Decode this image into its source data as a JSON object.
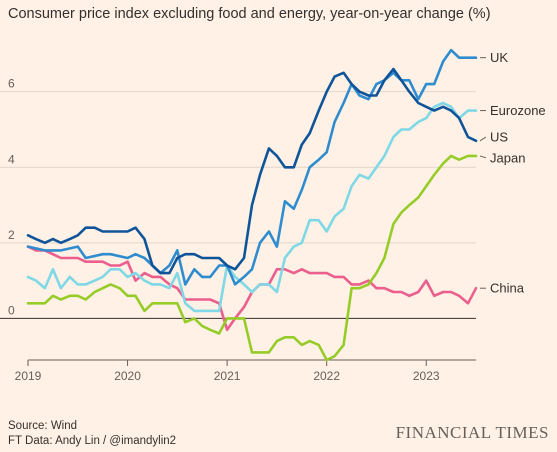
{
  "title": "Consumer price index excluding food and energy, year-on-year change (%)",
  "source_line": "Source: Wind",
  "credit_line": "FT Data: Andy Lin / @imandylin2",
  "brand": "FINANCIAL TIMES",
  "chart_data": {
    "type": "line",
    "title": "Consumer price index excluding food and energy, year-on-year change (%)",
    "xlabel": "",
    "ylabel": "",
    "x_ticks": [
      "2019",
      "2020",
      "2021",
      "2022",
      "2023"
    ],
    "y_ticks": [
      0,
      2,
      4,
      6
    ],
    "xlim": [
      2019.0,
      2023.5
    ],
    "ylim": [
      -1.1,
      7.5
    ],
    "grid": "horizontal",
    "legend": "direct labels at right end of lines",
    "series": [
      {
        "name": "UK",
        "color": "#2e8ccf",
        "label_y": 6.9,
        "points": [
          [
            2019.0,
            1.9
          ],
          [
            2019.17,
            1.8
          ],
          [
            2019.33,
            1.8
          ],
          [
            2019.5,
            1.9
          ],
          [
            2019.58,
            1.6
          ],
          [
            2019.75,
            1.7
          ],
          [
            2019.83,
            1.7
          ],
          [
            2020.0,
            1.6
          ],
          [
            2020.08,
            1.7
          ],
          [
            2020.17,
            1.6
          ],
          [
            2020.25,
            1.4
          ],
          [
            2020.33,
            1.2
          ],
          [
            2020.42,
            1.4
          ],
          [
            2020.5,
            1.8
          ],
          [
            2020.58,
            0.9
          ],
          [
            2020.67,
            1.3
          ],
          [
            2020.75,
            1.1
          ],
          [
            2020.83,
            1.1
          ],
          [
            2020.92,
            1.4
          ],
          [
            2021.0,
            1.4
          ],
          [
            2021.08,
            0.9
          ],
          [
            2021.17,
            1.1
          ],
          [
            2021.25,
            1.3
          ],
          [
            2021.33,
            2.0
          ],
          [
            2021.42,
            2.3
          ],
          [
            2021.5,
            1.9
          ],
          [
            2021.58,
            3.1
          ],
          [
            2021.67,
            2.9
          ],
          [
            2021.75,
            3.4
          ],
          [
            2021.83,
            4.0
          ],
          [
            2021.92,
            4.2
          ],
          [
            2022.0,
            4.4
          ],
          [
            2022.08,
            5.2
          ],
          [
            2022.17,
            5.7
          ],
          [
            2022.25,
            6.2
          ],
          [
            2022.33,
            5.9
          ],
          [
            2022.42,
            5.8
          ],
          [
            2022.5,
            6.2
          ],
          [
            2022.58,
            6.3
          ],
          [
            2022.67,
            6.5
          ],
          [
            2022.75,
            6.3
          ],
          [
            2022.83,
            6.3
          ],
          [
            2022.92,
            5.8
          ],
          [
            2023.0,
            6.2
          ],
          [
            2023.08,
            6.2
          ],
          [
            2023.17,
            6.8
          ],
          [
            2023.25,
            7.1
          ],
          [
            2023.33,
            6.9
          ],
          [
            2023.5,
            6.9
          ]
        ]
      },
      {
        "name": "Eurozone",
        "color": "#7fd8e6",
        "label_y": 5.5,
        "points": [
          [
            2019.0,
            1.1
          ],
          [
            2019.08,
            1.0
          ],
          [
            2019.17,
            0.8
          ],
          [
            2019.25,
            1.3
          ],
          [
            2019.33,
            0.8
          ],
          [
            2019.42,
            1.1
          ],
          [
            2019.5,
            0.9
          ],
          [
            2019.58,
            0.9
          ],
          [
            2019.67,
            1.0
          ],
          [
            2019.75,
            1.1
          ],
          [
            2019.83,
            1.3
          ],
          [
            2019.92,
            1.3
          ],
          [
            2020.0,
            1.1
          ],
          [
            2020.08,
            1.2
          ],
          [
            2020.17,
            1.0
          ],
          [
            2020.25,
            0.9
          ],
          [
            2020.33,
            0.9
          ],
          [
            2020.42,
            0.8
          ],
          [
            2020.5,
            1.2
          ],
          [
            2020.58,
            0.4
          ],
          [
            2020.67,
            0.2
          ],
          [
            2020.75,
            0.2
          ],
          [
            2020.92,
            0.2
          ],
          [
            2021.0,
            1.4
          ],
          [
            2021.08,
            1.1
          ],
          [
            2021.17,
            0.9
          ],
          [
            2021.25,
            0.7
          ],
          [
            2021.33,
            0.9
          ],
          [
            2021.42,
            0.9
          ],
          [
            2021.5,
            0.7
          ],
          [
            2021.58,
            1.6
          ],
          [
            2021.67,
            1.9
          ],
          [
            2021.75,
            2.0
          ],
          [
            2021.83,
            2.6
          ],
          [
            2021.92,
            2.6
          ],
          [
            2022.0,
            2.3
          ],
          [
            2022.08,
            2.7
          ],
          [
            2022.17,
            2.9
          ],
          [
            2022.25,
            3.5
          ],
          [
            2022.33,
            3.8
          ],
          [
            2022.42,
            3.7
          ],
          [
            2022.5,
            4.0
          ],
          [
            2022.58,
            4.3
          ],
          [
            2022.67,
            4.8
          ],
          [
            2022.75,
            5.0
          ],
          [
            2022.83,
            5.0
          ],
          [
            2022.92,
            5.2
          ],
          [
            2023.0,
            5.3
          ],
          [
            2023.08,
            5.6
          ],
          [
            2023.17,
            5.7
          ],
          [
            2023.25,
            5.6
          ],
          [
            2023.33,
            5.3
          ],
          [
            2023.42,
            5.5
          ],
          [
            2023.5,
            5.5
          ]
        ]
      },
      {
        "name": "US",
        "color": "#0f5499",
        "label_y": 4.8,
        "points": [
          [
            2019.0,
            2.2
          ],
          [
            2019.08,
            2.1
          ],
          [
            2019.17,
            2.0
          ],
          [
            2019.25,
            2.1
          ],
          [
            2019.33,
            2.0
          ],
          [
            2019.42,
            2.1
          ],
          [
            2019.5,
            2.2
          ],
          [
            2019.58,
            2.4
          ],
          [
            2019.67,
            2.4
          ],
          [
            2019.75,
            2.3
          ],
          [
            2019.83,
            2.3
          ],
          [
            2019.92,
            2.3
          ],
          [
            2020.0,
            2.3
          ],
          [
            2020.08,
            2.4
          ],
          [
            2020.17,
            2.1
          ],
          [
            2020.25,
            1.4
          ],
          [
            2020.33,
            1.2
          ],
          [
            2020.42,
            1.2
          ],
          [
            2020.5,
            1.6
          ],
          [
            2020.58,
            1.7
          ],
          [
            2020.67,
            1.7
          ],
          [
            2020.75,
            1.6
          ],
          [
            2020.83,
            1.6
          ],
          [
            2020.92,
            1.6
          ],
          [
            2021.0,
            1.4
          ],
          [
            2021.08,
            1.3
          ],
          [
            2021.17,
            1.6
          ],
          [
            2021.25,
            3.0
          ],
          [
            2021.33,
            3.8
          ],
          [
            2021.42,
            4.5
          ],
          [
            2021.5,
            4.3
          ],
          [
            2021.58,
            4.0
          ],
          [
            2021.67,
            4.0
          ],
          [
            2021.75,
            4.6
          ],
          [
            2021.83,
            4.9
          ],
          [
            2021.92,
            5.5
          ],
          [
            2022.0,
            6.0
          ],
          [
            2022.08,
            6.4
          ],
          [
            2022.17,
            6.5
          ],
          [
            2022.25,
            6.2
          ],
          [
            2022.33,
            6.0
          ],
          [
            2022.42,
            5.9
          ],
          [
            2022.5,
            5.9
          ],
          [
            2022.58,
            6.3
          ],
          [
            2022.67,
            6.6
          ],
          [
            2022.75,
            6.3
          ],
          [
            2022.83,
            6.0
          ],
          [
            2022.92,
            5.7
          ],
          [
            2023.0,
            5.6
          ],
          [
            2023.08,
            5.5
          ],
          [
            2023.17,
            5.6
          ],
          [
            2023.25,
            5.5
          ],
          [
            2023.33,
            5.3
          ],
          [
            2023.42,
            4.8
          ],
          [
            2023.5,
            4.7
          ]
        ]
      },
      {
        "name": "Japan",
        "color": "#96cc28",
        "label_y": 4.25,
        "points": [
          [
            2019.0,
            0.4
          ],
          [
            2019.08,
            0.4
          ],
          [
            2019.17,
            0.4
          ],
          [
            2019.25,
            0.6
          ],
          [
            2019.33,
            0.5
          ],
          [
            2019.42,
            0.6
          ],
          [
            2019.5,
            0.6
          ],
          [
            2019.58,
            0.5
          ],
          [
            2019.67,
            0.7
          ],
          [
            2019.75,
            0.8
          ],
          [
            2019.83,
            0.9
          ],
          [
            2019.92,
            0.8
          ],
          [
            2020.0,
            0.6
          ],
          [
            2020.08,
            0.6
          ],
          [
            2020.17,
            0.2
          ],
          [
            2020.25,
            0.4
          ],
          [
            2020.33,
            0.4
          ],
          [
            2020.42,
            0.4
          ],
          [
            2020.5,
            0.4
          ],
          [
            2020.58,
            -0.1
          ],
          [
            2020.67,
            0.0
          ],
          [
            2020.75,
            -0.2
          ],
          [
            2020.83,
            -0.3
          ],
          [
            2020.92,
            -0.4
          ],
          [
            2021.0,
            0.0
          ],
          [
            2021.08,
            0.0
          ],
          [
            2021.17,
            0.0
          ],
          [
            2021.25,
            -0.9
          ],
          [
            2021.33,
            -0.9
          ],
          [
            2021.42,
            -0.9
          ],
          [
            2021.5,
            -0.6
          ],
          [
            2021.58,
            -0.5
          ],
          [
            2021.67,
            -0.5
          ],
          [
            2021.75,
            -0.7
          ],
          [
            2021.83,
            -0.6
          ],
          [
            2021.92,
            -0.7
          ],
          [
            2022.0,
            -1.1
          ],
          [
            2022.08,
            -1.0
          ],
          [
            2022.17,
            -0.7
          ],
          [
            2022.25,
            0.8
          ],
          [
            2022.33,
            0.8
          ],
          [
            2022.42,
            0.9
          ],
          [
            2022.5,
            1.2
          ],
          [
            2022.58,
            1.6
          ],
          [
            2022.67,
            2.5
          ],
          [
            2022.75,
            2.8
          ],
          [
            2022.83,
            3.0
          ],
          [
            2022.92,
            3.2
          ],
          [
            2023.0,
            3.5
          ],
          [
            2023.08,
            3.8
          ],
          [
            2023.17,
            4.1
          ],
          [
            2023.25,
            4.3
          ],
          [
            2023.33,
            4.2
          ],
          [
            2023.42,
            4.3
          ],
          [
            2023.5,
            4.3
          ]
        ]
      },
      {
        "name": "China",
        "color": "#eb5e8d",
        "label_y": 0.8,
        "points": [
          [
            2019.0,
            1.9
          ],
          [
            2019.08,
            1.8
          ],
          [
            2019.17,
            1.8
          ],
          [
            2019.25,
            1.7
          ],
          [
            2019.33,
            1.6
          ],
          [
            2019.42,
            1.6
          ],
          [
            2019.5,
            1.6
          ],
          [
            2019.58,
            1.5
          ],
          [
            2019.67,
            1.5
          ],
          [
            2019.75,
            1.5
          ],
          [
            2019.83,
            1.4
          ],
          [
            2019.92,
            1.4
          ],
          [
            2020.0,
            1.5
          ],
          [
            2020.08,
            1.0
          ],
          [
            2020.17,
            1.2
          ],
          [
            2020.25,
            1.1
          ],
          [
            2020.33,
            1.1
          ],
          [
            2020.42,
            0.9
          ],
          [
            2020.5,
            0.8
          ],
          [
            2020.58,
            0.5
          ],
          [
            2020.67,
            0.5
          ],
          [
            2020.75,
            0.5
          ],
          [
            2020.83,
            0.5
          ],
          [
            2020.92,
            0.4
          ],
          [
            2021.0,
            -0.3
          ],
          [
            2021.08,
            0.0
          ],
          [
            2021.17,
            0.3
          ],
          [
            2021.25,
            0.7
          ],
          [
            2021.33,
            0.9
          ],
          [
            2021.42,
            0.9
          ],
          [
            2021.5,
            1.3
          ],
          [
            2021.58,
            1.3
          ],
          [
            2021.67,
            1.2
          ],
          [
            2021.75,
            1.3
          ],
          [
            2021.83,
            1.2
          ],
          [
            2021.92,
            1.2
          ],
          [
            2022.0,
            1.2
          ],
          [
            2022.08,
            1.1
          ],
          [
            2022.17,
            1.1
          ],
          [
            2022.25,
            0.9
          ],
          [
            2022.33,
            0.9
          ],
          [
            2022.42,
            1.0
          ],
          [
            2022.5,
            0.8
          ],
          [
            2022.58,
            0.8
          ],
          [
            2022.67,
            0.7
          ],
          [
            2022.75,
            0.7
          ],
          [
            2022.83,
            0.6
          ],
          [
            2022.92,
            0.7
          ],
          [
            2023.0,
            1.0
          ],
          [
            2023.08,
            0.6
          ],
          [
            2023.17,
            0.7
          ],
          [
            2023.25,
            0.7
          ],
          [
            2023.33,
            0.6
          ],
          [
            2023.42,
            0.4
          ],
          [
            2023.5,
            0.8
          ]
        ]
      }
    ]
  }
}
